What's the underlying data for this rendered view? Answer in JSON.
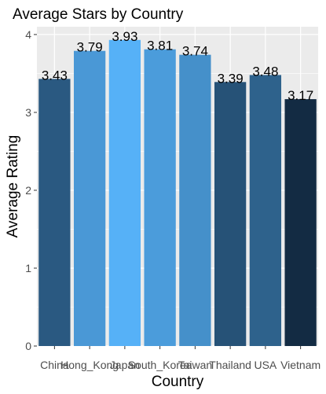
{
  "chart_data": {
    "type": "bar",
    "title": "Average Stars by Country",
    "xlabel": "Country",
    "ylabel": "Average Rating",
    "categories": [
      "China",
      "Hong_Kong",
      "Japan",
      "South_Korea",
      "Taiwan",
      "Thailand",
      "USA",
      "Vietnam"
    ],
    "values": [
      3.43,
      3.79,
      3.93,
      3.81,
      3.74,
      3.39,
      3.48,
      3.17
    ],
    "data_labels": [
      "3.43",
      "3.79",
      "3.93",
      "3.81",
      "3.74",
      "3.39",
      "3.48",
      "3.17"
    ],
    "yticks": [
      "0",
      "1",
      "2",
      "3",
      "4"
    ],
    "ylim": [
      0,
      4.1
    ],
    "grid": true,
    "legend": "none",
    "colors": {
      "panel_background": "#ebebeb",
      "gridline": "#ffffff",
      "bar_low": "#132b43",
      "bar_high": "#56b1f7"
    }
  }
}
